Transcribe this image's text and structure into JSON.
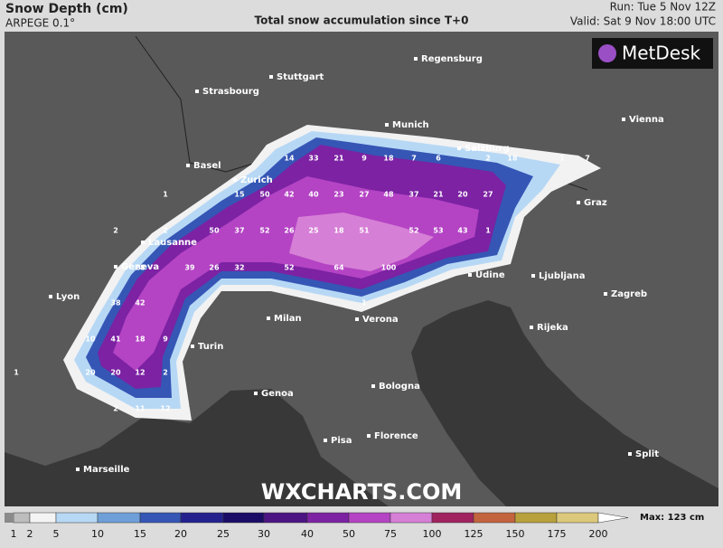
{
  "header": {
    "title": "Snow Depth (cm)",
    "model": "ARPEGE 0.1°",
    "subtitle": "Total snow accumulation since T+0",
    "run": "Run: Tue 5 Nov 12Z",
    "valid": "Valid: Sat 9 Nov 18:00 UTC"
  },
  "logo": "MetDesk",
  "watermark": "WXCHARTS.COM",
  "cities": [
    "Regensburg",
    "Stuttgart",
    "Strasbourg",
    "Munich",
    "Vienna",
    "Salzburg",
    "Basel",
    "Zurich",
    "Graz",
    "Lausanne",
    "Geneva",
    "Lyon",
    "Udine",
    "Ljubljana",
    "Zagreb",
    "Milan",
    "Verona",
    "Rijeka",
    "Turin",
    "Genoa",
    "Bologna",
    "Pisa",
    "Florence",
    "Split",
    "Marseille"
  ],
  "snow_labels": [
    14,
    33,
    21,
    9,
    18,
    7,
    6,
    2,
    18,
    1,
    7,
    15,
    50,
    42,
    40,
    23,
    27,
    48,
    37,
    21,
    20,
    27,
    2,
    50,
    37,
    52,
    26,
    25,
    18,
    51,
    52,
    53,
    43,
    1,
    28,
    39,
    26,
    32,
    52,
    64,
    100,
    38,
    42,
    10,
    41,
    18,
    9,
    20,
    20,
    12,
    2,
    2,
    11,
    12,
    1,
    1,
    2,
    1
  ],
  "legend": {
    "ticks": [
      1,
      2,
      5,
      10,
      15,
      20,
      25,
      30,
      40,
      50,
      75,
      100,
      125,
      150,
      175,
      200
    ],
    "colors": [
      "#bdbdbd",
      "#f4f4f4",
      "#b7d8f5",
      "#6f9fd8",
      "#3556b5",
      "#24218f",
      "#1a0b66",
      "#4c1482",
      "#7c22a3",
      "#b444c4",
      "#d67fd6",
      "#a0225e",
      "#c2643e",
      "#b8a13c",
      "#dcc87a"
    ],
    "max_label": "Max: 123 cm"
  }
}
